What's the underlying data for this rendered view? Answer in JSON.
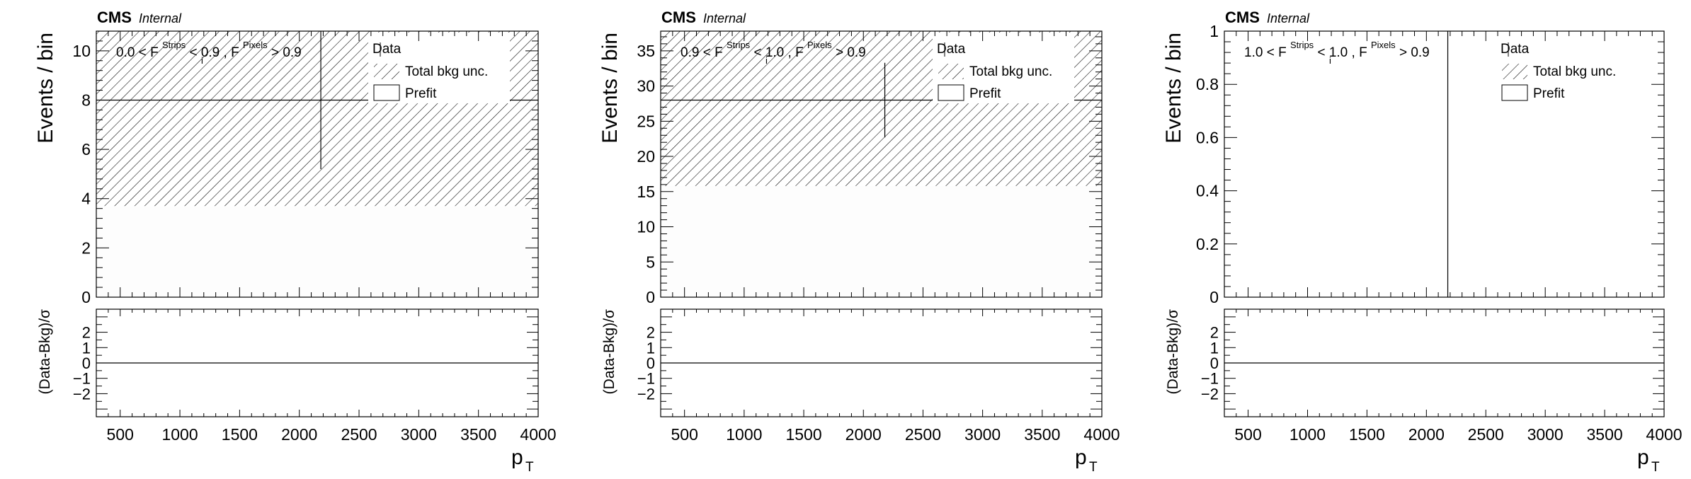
{
  "chart_data": [
    {
      "type": "bar",
      "experiment": "CMS",
      "status": "Internal",
      "region_label": {
        "left": "0.0 < F",
        "sup1": "Strips",
        "mid": "< 0.9 , F",
        "sup2": "Pixels",
        "right": "> 0.9",
        "sub": "i"
      },
      "ylabel": "Events / bin",
      "xlabel": "p",
      "xlabel_sub": "T",
      "ratio_ylabel": "(Data-Bkg)/σ",
      "xlim": [
        300,
        4000
      ],
      "ylim": [
        0,
        10.8
      ],
      "yticks": [
        "0",
        "2",
        "4",
        "6",
        "8",
        "10"
      ],
      "xticks": [
        "500",
        "1000",
        "1500",
        "2000",
        "2500",
        "3000",
        "3500",
        "4000"
      ],
      "ratio_ylim": [
        -3.5,
        3.5
      ],
      "ratio_yticks": [
        "−2",
        "−1",
        "0",
        "1",
        "2"
      ],
      "legend": [
        "Data",
        "Total bkg unc.",
        "Prefit"
      ],
      "prefit_value": 8.0,
      "unc_band": [
        3.7,
        10.8
      ],
      "data_point": {
        "x": 2180,
        "y": 8.0,
        "yerr_low": 2.8,
        "yerr_high": 2.8
      }
    },
    {
      "type": "bar",
      "experiment": "CMS",
      "status": "Internal",
      "region_label": {
        "left": "0.9 < F",
        "sup1": "Strips",
        "mid": "< 1.0 , F",
        "sup2": "Pixels",
        "right": "> 0.9",
        "sub": "i"
      },
      "ylabel": "Events / bin",
      "xlabel": "p",
      "xlabel_sub": "T",
      "ratio_ylabel": "(Data-Bkg)/σ",
      "xlim": [
        300,
        4000
      ],
      "ylim": [
        0,
        37.8
      ],
      "yticks": [
        "0",
        "5",
        "10",
        "15",
        "20",
        "25",
        "30",
        "35"
      ],
      "xticks": [
        "500",
        "1000",
        "1500",
        "2000",
        "2500",
        "3000",
        "3500",
        "4000"
      ],
      "ratio_ylim": [
        -3.5,
        3.5
      ],
      "ratio_yticks": [
        "−2",
        "−1",
        "0",
        "1",
        "2"
      ],
      "legend": [
        "Data",
        "Total bkg unc.",
        "Prefit"
      ],
      "prefit_value": 28.0,
      "unc_band": [
        15.8,
        37.8
      ],
      "data_point": {
        "x": 2180,
        "y": 28.0,
        "yerr_low": 5.3,
        "yerr_high": 5.3
      }
    },
    {
      "type": "bar",
      "experiment": "CMS",
      "status": "Internal",
      "region_label": {
        "left": "1.0 < F",
        "sup1": "Strips",
        "mid": "< 1.0 , F",
        "sup2": "Pixels",
        "right": "> 0.9",
        "sub": "i"
      },
      "ylabel": "Events / bin",
      "xlabel": "p",
      "xlabel_sub": "T",
      "ratio_ylabel": "(Data-Bkg)/σ",
      "xlim": [
        300,
        4000
      ],
      "ylim": [
        0,
        1.0
      ],
      "yticks": [
        "0",
        "0.2",
        "0.4",
        "0.6",
        "0.8",
        "1"
      ],
      "xticks": [
        "500",
        "1000",
        "1500",
        "2000",
        "2500",
        "3000",
        "3500",
        "4000"
      ],
      "ratio_ylim": [
        -3.5,
        3.5
      ],
      "ratio_yticks": [
        "−2",
        "−1",
        "0",
        "1",
        "2"
      ],
      "legend": [
        "Data",
        "Total bkg unc.",
        "Prefit"
      ],
      "prefit_value": null,
      "unc_band": null,
      "data_point": {
        "x": 2180,
        "y": 0,
        "yerr_low": 0,
        "yerr_high": 1.0
      }
    }
  ]
}
